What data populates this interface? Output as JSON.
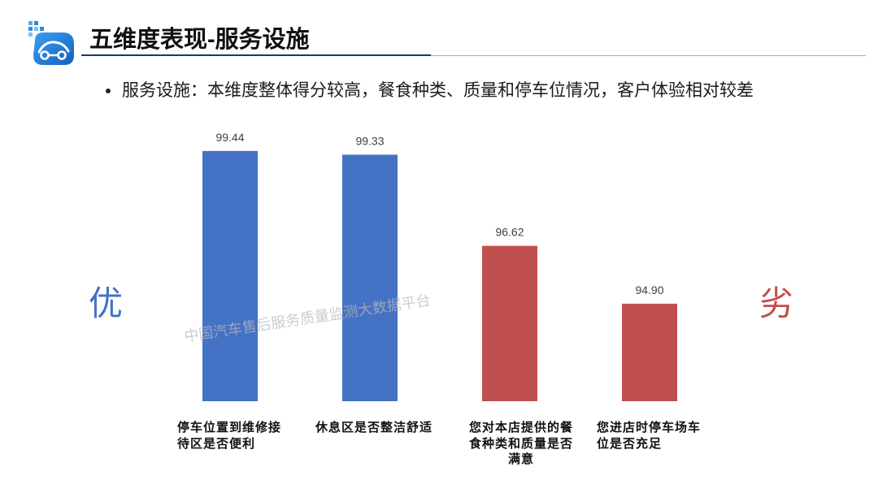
{
  "slide": {
    "title": "五维度表现-服务设施",
    "bullet": "服务设施：本维度整体得分较高，餐食种类、质量和停车位情况，客户体验相对较差",
    "left_marker": "优",
    "right_marker": "劣",
    "watermark": "中国汽车售后服务质量监测大数据平台",
    "logo_icon": "car-cloud-logo-icon"
  },
  "colors": {
    "good": "#4472C4",
    "bad": "#C0504D",
    "title_rule_left": "#1F3864",
    "title_rule_right": "#F0A030"
  },
  "chart_data": {
    "type": "bar",
    "categories": [
      "停车位置到维修接待区是否便利",
      "休息区是否整洁舒适",
      "您对本店提供的餐食种类和质量是否满意",
      "您进店时停车场车位是否充足"
    ],
    "values": [
      99.44,
      99.33,
      96.62,
      94.9
    ],
    "bar_colors": [
      "#4472C4",
      "#4472C4",
      "#C0504D",
      "#C0504D"
    ],
    "ylim": [
      92,
      100
    ],
    "grid": false,
    "legend": "none",
    "data_labels": true
  }
}
